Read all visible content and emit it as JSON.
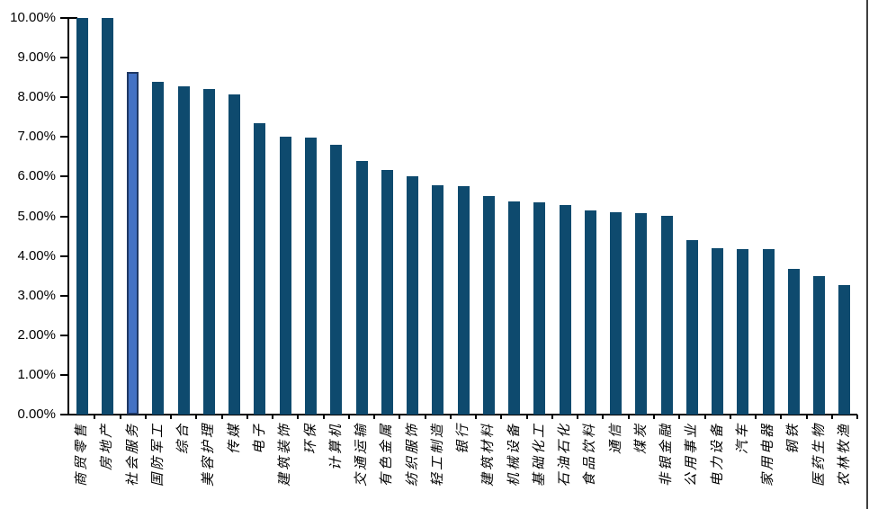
{
  "chart_data": {
    "type": "bar",
    "title": "",
    "xlabel": "",
    "ylabel": "",
    "categories": [
      "商贸零售",
      "房地产",
      "社会服务",
      "国防军工",
      "综合",
      "美容护理",
      "传媒",
      "电子",
      "建筑装饰",
      "环保",
      "计算机",
      "交通运输",
      "有色金属",
      "纺织服饰",
      "轻工制造",
      "银行",
      "建筑材料",
      "机械设备",
      "基础化工",
      "石油石化",
      "食品饮料",
      "通信",
      "煤炭",
      "非银金融",
      "公用事业",
      "电力设备",
      "汽车",
      "家用电器",
      "钢铁",
      "医药生物",
      "农林牧渔"
    ],
    "values": [
      10.0,
      10.0,
      8.65,
      8.38,
      8.28,
      8.2,
      8.08,
      7.35,
      7.0,
      6.99,
      6.8,
      6.4,
      6.16,
      6.0,
      5.78,
      5.77,
      5.5,
      5.37,
      5.35,
      5.28,
      5.14,
      5.11,
      5.09,
      5.0,
      4.41,
      4.19,
      4.18,
      4.17,
      3.67,
      3.49,
      3.26
    ],
    "highlight_index": 2,
    "highlighted_category": "社会服务",
    "y_tick_labels": [
      "0.00%",
      "1.00%",
      "2.00%",
      "3.00%",
      "4.00%",
      "5.00%",
      "6.00%",
      "7.00%",
      "8.00%",
      "9.00%",
      "10.00%"
    ],
    "ylim": [
      0,
      10
    ],
    "grid": false,
    "legend": false,
    "colors": {
      "bar": "#0E4A6E",
      "highlight_fill": "#4472C4",
      "highlight_border": "#1F3864",
      "axis": "#000000",
      "frame_line": "#3F3F3F"
    }
  }
}
